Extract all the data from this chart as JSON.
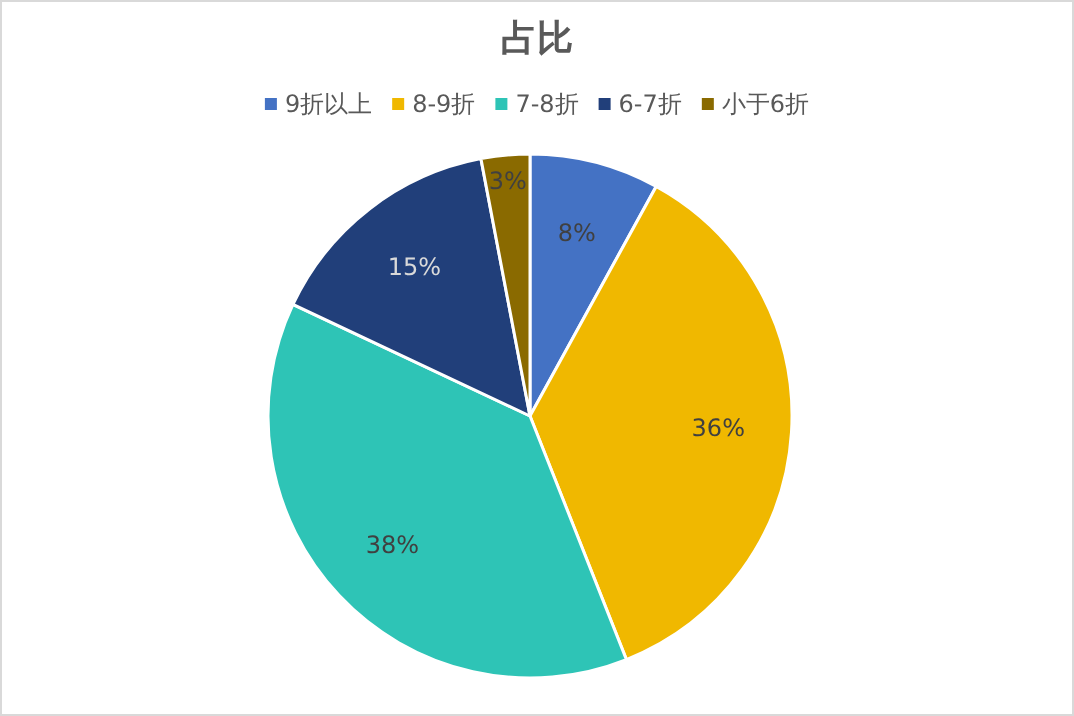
{
  "chart_data": {
    "type": "pie",
    "title": "占比",
    "categories": [
      "9折以上",
      "8-9折",
      "7-8折",
      "6-7折",
      "小于6折"
    ],
    "values": [
      8,
      36,
      38,
      15,
      3
    ],
    "value_labels": [
      "8%",
      "36%",
      "38%",
      "15%",
      "3%"
    ],
    "colors": [
      "#4472c4",
      "#f0b800",
      "#2ec4b6",
      "#213f7a",
      "#8a6a00"
    ],
    "legend": "top"
  }
}
